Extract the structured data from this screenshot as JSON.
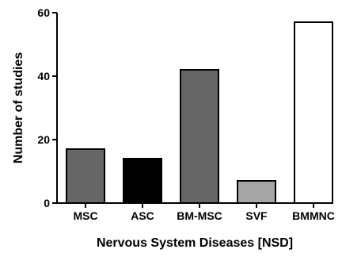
{
  "chart_data": {
    "type": "bar",
    "title": "",
    "xlabel": "Nervous System Diseases [NSD]",
    "ylabel": "Number of studies",
    "categories": [
      "MSC",
      "ASC",
      "BM-MSC",
      "SVF",
      "BMMNC"
    ],
    "values": [
      17,
      14,
      42,
      7,
      57
    ],
    "ylim": [
      0,
      60
    ],
    "yticks": [
      0,
      20,
      40,
      60
    ],
    "grid": false,
    "legend": "none",
    "bar_colors": [
      "#666666",
      "#000000",
      "#666666",
      "#a6a6a6",
      "#ffffff"
    ],
    "bar_outline": "#000000"
  }
}
